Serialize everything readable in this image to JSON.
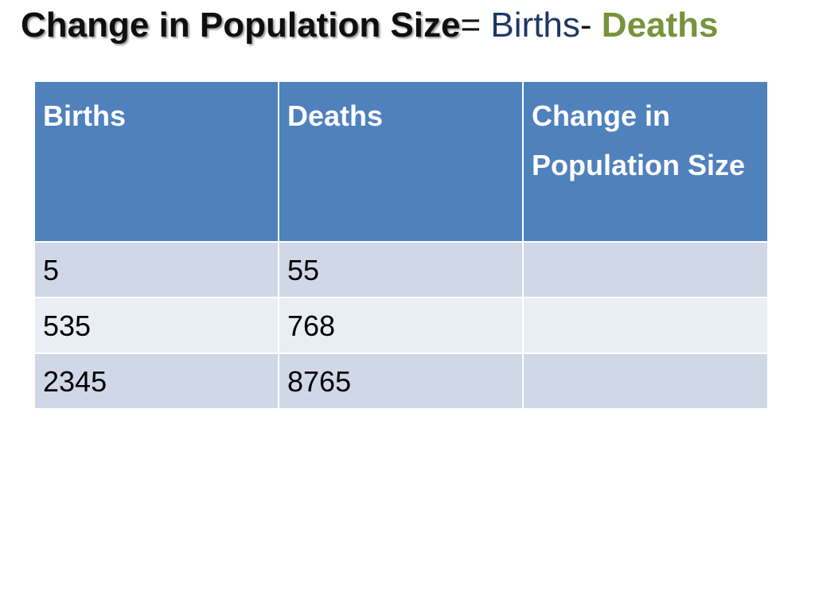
{
  "title": {
    "lhs": "Change in Population Size",
    "equals": "=",
    "births": "Births",
    "minus": "-",
    "deaths": "Deaths"
  },
  "table": {
    "headers": [
      "Births",
      "Deaths",
      "Change in Population Size"
    ],
    "rows": [
      [
        "5",
        "55",
        ""
      ],
      [
        "535",
        "768",
        ""
      ],
      [
        "2345",
        "8765",
        ""
      ]
    ]
  },
  "colors": {
    "header_bg": "#4f81bd",
    "row_odd_bg": "#d0d8e8",
    "row_even_bg": "#e9edf4",
    "title_births": "#1f3864",
    "title_deaths": "#77933c"
  }
}
